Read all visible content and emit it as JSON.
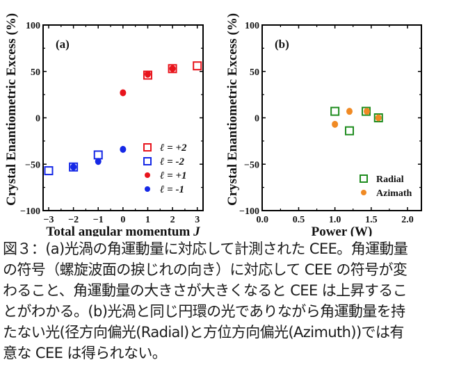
{
  "chart_data": [
    {
      "type": "scatter",
      "panel_label": "(a)",
      "title": "",
      "xlabel": "Total angular momentum",
      "xlabel_italic_suffix": "J",
      "ylabel": "Crystal Enantiometric Excess (%)",
      "xlim": [
        -3.2,
        3.2
      ],
      "ylim": [
        -100,
        100
      ],
      "xticks": [
        -3,
        -2,
        -1,
        0,
        1,
        2,
        3
      ],
      "xtick_labels": [
        "−3",
        "−2",
        "−1",
        "0",
        "1",
        "2",
        "3"
      ],
      "yticks": [
        100,
        50,
        0,
        -50,
        -100
      ],
      "ytick_labels": [
        "100",
        "50",
        "0",
        "−50",
        "−100"
      ],
      "grid": false,
      "legend_position": "bottom-right",
      "series": [
        {
          "name": "ℓ = +2",
          "marker": "open-square",
          "color": "#e8141c",
          "x": [
            1,
            2,
            3
          ],
          "y": [
            46,
            53,
            56
          ]
        },
        {
          "name": "ℓ =  -2",
          "marker": "open-square",
          "color": "#1528e6",
          "x": [
            -3,
            -2,
            -1
          ],
          "y": [
            -57,
            -53,
            -40
          ]
        },
        {
          "name": "ℓ = +1",
          "marker": "filled-circle",
          "color": "#e8141c",
          "x": [
            0,
            1,
            2
          ],
          "y": [
            27,
            47,
            53
          ]
        },
        {
          "name": "ℓ =  -1",
          "marker": "filled-circle",
          "color": "#1528e6",
          "x": [
            -2,
            -1,
            0
          ],
          "y": [
            -53,
            -47,
            -34
          ]
        }
      ]
    },
    {
      "type": "scatter",
      "panel_label": "(b)",
      "title": "",
      "xlabel": "Power (W)",
      "ylabel": "Crystal Enantiometric Excess (%)",
      "xlim": [
        0,
        2.2
      ],
      "ylim": [
        -100,
        100
      ],
      "xticks": [
        0,
        0.5,
        1.0,
        1.5,
        2.0
      ],
      "xtick_labels": [
        "0.0",
        "0.5",
        "1.0",
        "1.5",
        "2.0"
      ],
      "yticks": [
        100,
        50,
        0,
        -50,
        -100
      ],
      "ytick_labels": [
        "100",
        "50",
        "0",
        "−50",
        "−100"
      ],
      "grid": false,
      "legend_position": "bottom-right",
      "series": [
        {
          "name": "Radial",
          "marker": "open-square",
          "color": "#1e8c1e",
          "x": [
            1.0,
            1.2,
            1.43,
            1.6
          ],
          "y": [
            7,
            -14,
            7,
            0
          ]
        },
        {
          "name": "Azimath",
          "marker": "filled-circle",
          "color": "#f08a24",
          "x": [
            1.0,
            1.2,
            1.44,
            1.6
          ],
          "y": [
            -7,
            7,
            7,
            0
          ]
        }
      ]
    }
  ],
  "caption": {
    "lines": [
      "図３：(a)光渦の角運動量に対応して計測された CEE。角運動量",
      "の符号（螺旋波面の捩じれの向き）に対応して CEE の符号が変",
      "わること、角運動量の大きさが大きくなると CEE は上昇するこ",
      "とがわかる。(b)光渦と同じ円環の光でありながら角運動量を持",
      "たない光(径方向偏光(Radial)と方位方向偏光(Azimuth))では有",
      "意な CEE は得られない。"
    ]
  }
}
